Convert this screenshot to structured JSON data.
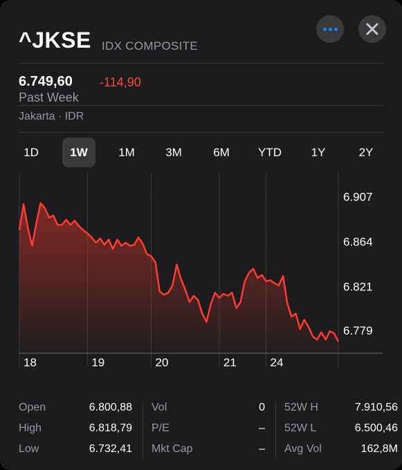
{
  "header": {
    "symbol": "^JKSE",
    "exchange": "IDX COMPOSITE",
    "more_icon": "ellipsis-icon",
    "close_icon": "close-icon"
  },
  "quote": {
    "price": "6.749,60",
    "change": "-114,90",
    "period": "Past Week",
    "market": "Jakarta · IDR"
  },
  "ranges": [
    {
      "label": "1D",
      "active": false
    },
    {
      "label": "1W",
      "active": true
    },
    {
      "label": "1M",
      "active": false
    },
    {
      "label": "3M",
      "active": false
    },
    {
      "label": "6M",
      "active": false
    },
    {
      "label": "YTD",
      "active": false
    },
    {
      "label": "1Y",
      "active": false
    },
    {
      "label": "2Y",
      "active": false
    }
  ],
  "colors": {
    "line": "#ff3b30",
    "negative": "#ff453a",
    "accent": "#0a84ff"
  },
  "chart_data": {
    "type": "area",
    "title": "",
    "xlabel": "",
    "ylabel": "",
    "y_ticks": [
      "6.907",
      "6.864",
      "6.821",
      "6.779"
    ],
    "y_tick_values": [
      6907,
      6864,
      6821,
      6779
    ],
    "x_ticks": [
      "18",
      "19",
      "20",
      "21",
      "24"
    ],
    "ylim": [
      6757,
      6930
    ],
    "grid": true,
    "x_index_domain": [
      0,
      75
    ],
    "x_tick_index": [
      0,
      16,
      31,
      47,
      58
    ],
    "values": [
      6875,
      6900,
      6877,
      6860,
      6882,
      6901,
      6896,
      6887,
      6889,
      6880,
      6880,
      6885,
      6880,
      6884,
      6879,
      6875,
      6872,
      6868,
      6863,
      6867,
      6861,
      6866,
      6857,
      6866,
      6860,
      6863,
      6860,
      6861,
      6868,
      6862,
      6852,
      6850,
      6844,
      6816,
      6813,
      6815,
      6822,
      6842,
      6828,
      6818,
      6806,
      6812,
      6808,
      6795,
      6787,
      6804,
      6815,
      6810,
      6814,
      6812,
      6815,
      6800,
      6806,
      6826,
      6834,
      6838,
      6829,
      6832,
      6826,
      6827,
      6824,
      6822,
      6831,
      6805,
      6792,
      6795,
      6780,
      6789,
      6782,
      6773,
      6770,
      6777,
      6770,
      6778,
      6776,
      6768
    ],
    "series": [
      {
        "values_ref": "values"
      }
    ]
  },
  "stats": [
    [
      {
        "label": "Open",
        "value": "6.800,88"
      },
      {
        "label": "High",
        "value": "6.818,79"
      },
      {
        "label": "Low",
        "value": "6.732,41"
      }
    ],
    [
      {
        "label": "Vol",
        "value": "0"
      },
      {
        "label": "P/E",
        "value": "–"
      },
      {
        "label": "Mkt Cap",
        "value": "–"
      }
    ],
    [
      {
        "label": "52W H",
        "value": "7.910,56"
      },
      {
        "label": "52W L",
        "value": "6.500,46"
      },
      {
        "label": "Avg Vol",
        "value": "162,8M"
      }
    ]
  ]
}
